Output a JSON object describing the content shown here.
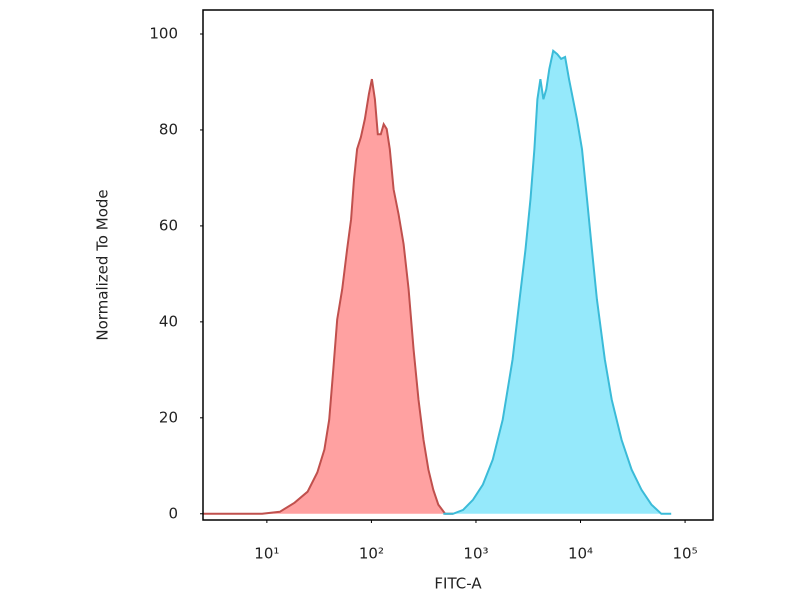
{
  "chart_data": {
    "type": "area",
    "x_label": "FITC-A",
    "y_label": "Normalized To Mode",
    "xscale": "log",
    "xlim": [
      2.45,
      185000
    ],
    "ylim": [
      -1.3,
      105
    ],
    "xticks": [
      {
        "value": 10,
        "label": "10¹"
      },
      {
        "value": 100,
        "label": "10²"
      },
      {
        "value": 1000,
        "label": "10³"
      },
      {
        "value": 10000,
        "label": "10⁴"
      },
      {
        "value": 100000,
        "label": "10⁵"
      }
    ],
    "yticks": [
      0,
      20,
      40,
      60,
      80,
      100
    ],
    "grid": false,
    "series": [
      {
        "color": "#c0504d",
        "fill": "#ff9c9c",
        "x": [
          2.47,
          5.5,
          9.0,
          13.3,
          18.4,
          24.5,
          30.4,
          35.5,
          39.5,
          43.2,
          47.1,
          52.5,
          58.6,
          63.9,
          68.2,
          72.9,
          79.4,
          86.7,
          94.6,
          101,
          108,
          115,
          123,
          131,
          140,
          150,
          163,
          182,
          203,
          227,
          253,
          282,
          315,
          351,
          391,
          436,
          508,
          605
        ],
        "values": [
          0,
          0,
          0,
          0.4,
          2.3,
          4.6,
          8.6,
          13.4,
          19.6,
          30.1,
          40.5,
          46.8,
          55.1,
          61.4,
          69.7,
          76.0,
          78.5,
          82.3,
          87.5,
          90.6,
          86.4,
          79.1,
          79.1,
          81.2,
          80.2,
          76.0,
          67.6,
          62.4,
          56.2,
          46.8,
          34.2,
          23.8,
          15.4,
          9.2,
          5.0,
          1.9,
          0,
          0
        ]
      },
      {
        "color": "#3bbbd8",
        "fill": "#8fe8fb",
        "x": [
          487,
          605,
          753,
          937,
          1165,
          1449,
          1803,
          2243,
          2614,
          2979,
          3321,
          3623,
          3869,
          4131,
          4411,
          4710,
          5029,
          5485,
          5983,
          6526,
          7118,
          7764,
          8468,
          9237,
          10330,
          11530,
          12860,
          14330,
          17060,
          19890,
          24740,
          30770,
          38270,
          47600,
          59200,
          73640
        ],
        "values": [
          0,
          0,
          0.8,
          2.9,
          6.1,
          11.3,
          19.6,
          32.2,
          44.7,
          55.1,
          65.6,
          76.0,
          86.4,
          90.6,
          86.4,
          88.5,
          92.7,
          96.5,
          95.8,
          94.8,
          95.2,
          90.6,
          86.4,
          82.3,
          76.0,
          65.6,
          55.1,
          44.7,
          32.2,
          23.8,
          15.4,
          9.2,
          5.0,
          1.9,
          0,
          0
        ]
      }
    ]
  }
}
